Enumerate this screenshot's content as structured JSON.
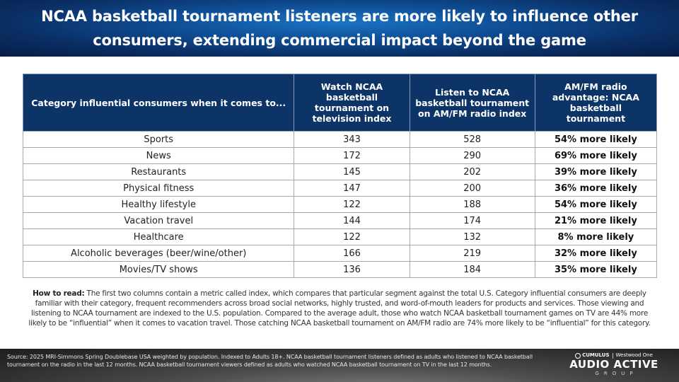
{
  "header": {
    "title": "NCAA basketball tournament listeners are more likely to influence other consumers, extending commercial impact beyond the game"
  },
  "table": {
    "columns": [
      "Category influential consumers when it comes to...",
      "Watch NCAA basketball tournament on television index",
      "Listen to NCAA basketball tournament on AM/FM radio index",
      "AM/FM radio advantage: NCAA basketball tournament"
    ],
    "rows": [
      {
        "category": "Sports",
        "tv_index": "343",
        "radio_index": "528",
        "advantage": "54% more likely"
      },
      {
        "category": "News",
        "tv_index": "172",
        "radio_index": "290",
        "advantage": "69% more likely"
      },
      {
        "category": "Restaurants",
        "tv_index": "145",
        "radio_index": "202",
        "advantage": "39% more likely"
      },
      {
        "category": "Physical fitness",
        "tv_index": "147",
        "radio_index": "200",
        "advantage": "36% more likely"
      },
      {
        "category": "Healthy lifestyle",
        "tv_index": "122",
        "radio_index": "188",
        "advantage": "54% more likely"
      },
      {
        "category": "Vacation travel",
        "tv_index": "144",
        "radio_index": "174",
        "advantage": "21% more likely"
      },
      {
        "category": "Healthcare",
        "tv_index": "122",
        "radio_index": "132",
        "advantage": "8% more likely"
      },
      {
        "category": "Alcoholic beverages (beer/wine/other)",
        "tv_index": "166",
        "radio_index": "219",
        "advantage": "32% more likely"
      },
      {
        "category": "Movies/TV shows",
        "tv_index": "136",
        "radio_index": "184",
        "advantage": "35% more likely"
      }
    ]
  },
  "how_to_read": {
    "label": "How to read:",
    "text": " The first two columns contain a metric called index, which compares that particular segment against the total U.S. Category influential consumers are deeply familiar with their category, frequent recommenders across broad social networks, highly trusted, and word-of-mouth leaders for products and services. Those viewing and listening to NCAA tournament are indexed to the U.S. population. Compared to the average adult, those who watch NCAA basketball tournament games on TV are 44% more likely to be “influential” when it comes to vacation travel. Those catching NCAA basketball tournament on AM/FM radio are 74% more likely to be “influential” for this category."
  },
  "footer": {
    "source": "Source: 2025 MRI-Simmons Spring Doublebase USA weighted by population. Indexed to Adults 18+. NCAA basketball tournament listeners defined as adults who listened to NCAA basketball tournament on the radio in the last 12 months. NCAA basketball tournament viewers defined as adults who watched NCAA basketball tournament on TV in the last 12 months.",
    "logo": {
      "top_left": "CUMULUS",
      "top_right": "Westwood One",
      "main": "AUDIO ACTIVE",
      "sub": "GROUP"
    }
  },
  "colors": {
    "banner": "#0a2e63",
    "table_header": "#0d3466",
    "footer": "#2a2a2a"
  }
}
